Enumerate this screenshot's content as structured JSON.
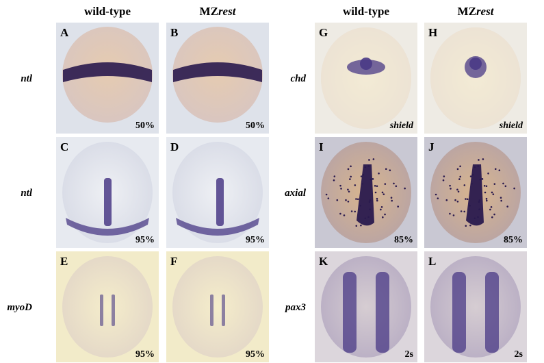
{
  "headers": [
    {
      "text": "wild-type"
    },
    {
      "prefix": "MZ",
      "italic": "rest"
    },
    {
      "text": "wild-type"
    },
    {
      "prefix": "MZ",
      "italic": "rest"
    }
  ],
  "row_labels": [
    "ntl",
    "ntl",
    "myoD",
    "chd",
    "axial",
    "pax3"
  ],
  "panels": [
    {
      "letter": "A",
      "stage": "50%"
    },
    {
      "letter": "B",
      "stage": "50%"
    },
    {
      "letter": "C",
      "stage": "95%"
    },
    {
      "letter": "D",
      "stage": "95%"
    },
    {
      "letter": "E",
      "stage": "95%"
    },
    {
      "letter": "F",
      "stage": "95%"
    },
    {
      "letter": "G",
      "stage": "shield"
    },
    {
      "letter": "H",
      "stage": "shield"
    },
    {
      "letter": "I",
      "stage": "85%"
    },
    {
      "letter": "J",
      "stage": "85%"
    },
    {
      "letter": "K",
      "stage": "2s"
    },
    {
      "letter": "L",
      "stage": "2s"
    }
  ]
}
